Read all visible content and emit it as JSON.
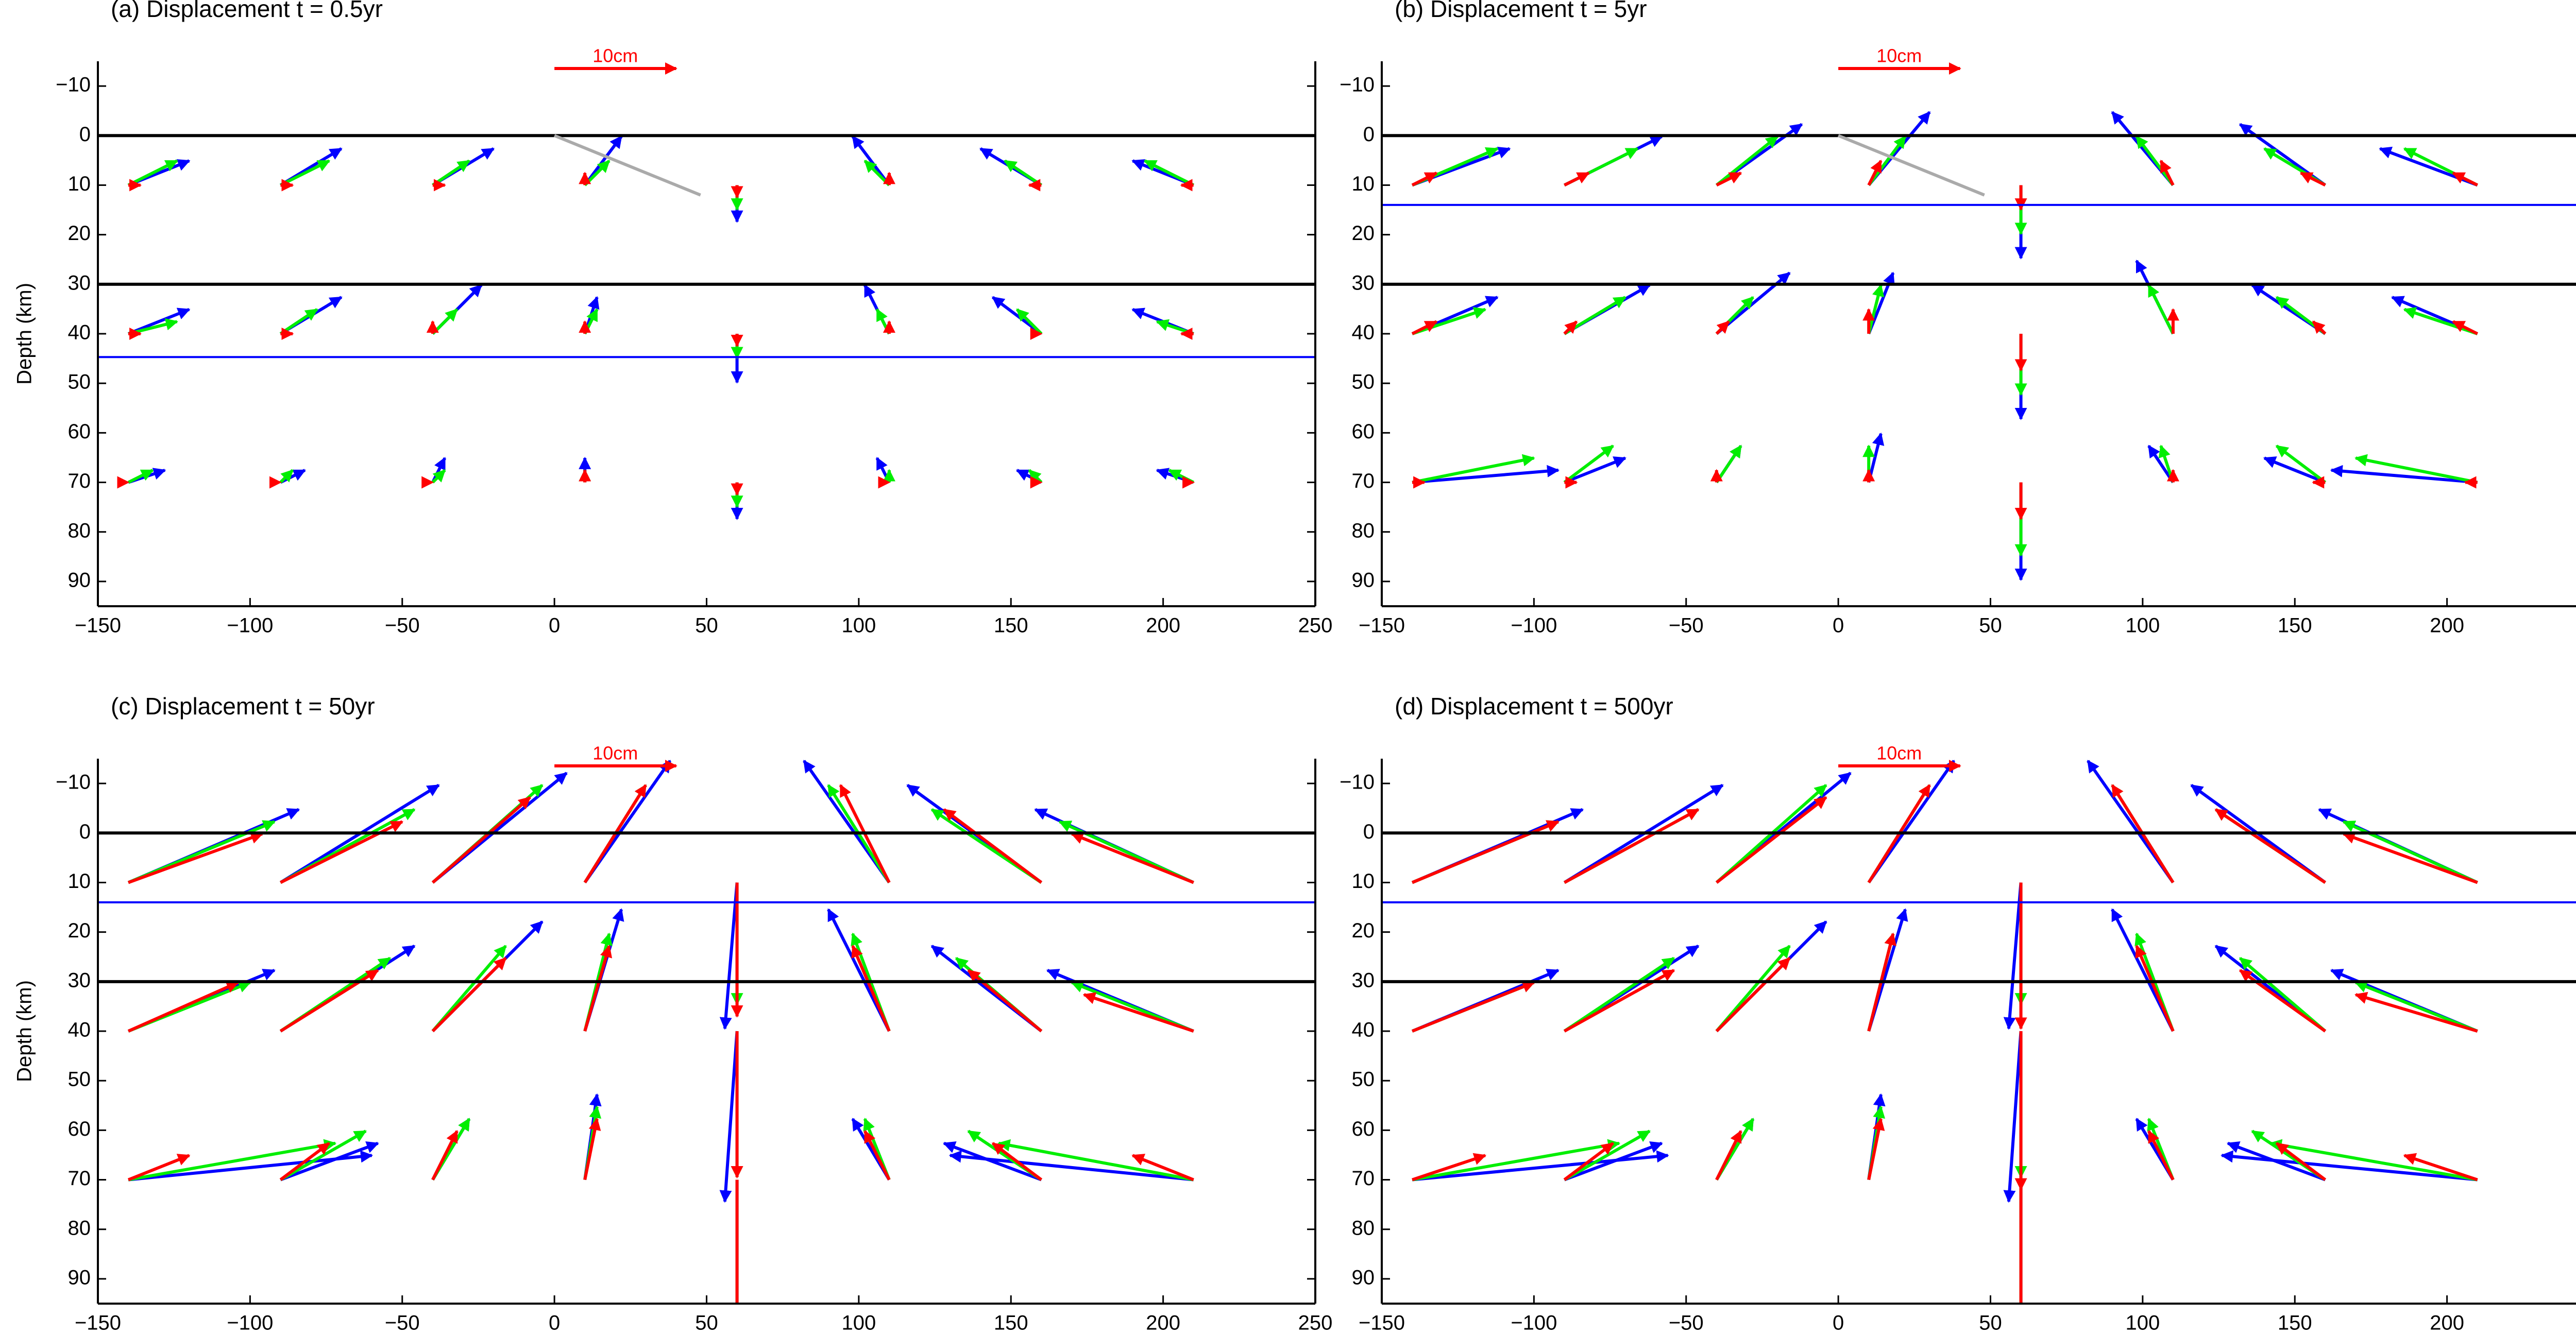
{
  "chart_data": [
    {
      "type": "quiver",
      "title": "(a) Displacement  t = 0.5yr",
      "ylabel": "Depth (km)",
      "xlim": [
        -150,
        250
      ],
      "ylim": [
        95,
        -15
      ],
      "xticks": [
        {
          "value": -150,
          "label": "−150"
        },
        {
          "value": -100,
          "label": "−100"
        },
        {
          "value": -50,
          "label": "−50"
        },
        0,
        50,
        100,
        150,
        200,
        250
      ],
      "yticks": [
        {
          "value": -10,
          "label": "−10"
        },
        0,
        10,
        20,
        30,
        40,
        50,
        60,
        70,
        80,
        90
      ],
      "layer_lines": [
        0,
        30
      ],
      "blue_line": 44.7,
      "fault": [
        [
          0,
          0
        ],
        [
          48,
          12
        ]
      ],
      "scale_label": "10cm",
      "scale_length": 10,
      "x": [
        -140,
        -90,
        -40,
        10,
        60,
        110,
        160,
        210,
        -140,
        -90,
        -40,
        10,
        60,
        110,
        160,
        210,
        -140,
        -90,
        -40,
        10,
        60,
        110,
        160,
        210
      ],
      "y": [
        10,
        10,
        10,
        10,
        10,
        10,
        10,
        10,
        40,
        40,
        40,
        40,
        40,
        40,
        40,
        40,
        70,
        70,
        70,
        70,
        70,
        70,
        70,
        70
      ],
      "series": [
        {
          "name": "blue",
          "color": "#0000ff",
          "u": [
            5,
            5,
            5,
            3,
            0,
            -3,
            -5,
            -5,
            5,
            5,
            4,
            1,
            0,
            -2,
            -4,
            -5,
            3,
            2,
            1,
            0,
            0,
            -1,
            -2,
            -3
          ],
          "v": [
            2,
            3,
            3,
            4,
            -3,
            4,
            3,
            2,
            2,
            3,
            4,
            3,
            -4,
            4,
            3,
            2,
            1,
            1,
            2,
            2,
            -3,
            2,
            1,
            1
          ]
        },
        {
          "name": "green",
          "color": "#00ee00",
          "u": [
            4,
            4,
            3,
            2,
            0,
            -2,
            -3,
            -4,
            4,
            3,
            2,
            1,
            0,
            -1,
            -2,
            -3,
            2,
            1,
            1,
            0,
            0,
            0,
            -1,
            -2
          ],
          "v": [
            2,
            2,
            2,
            2,
            -2,
            2,
            2,
            2,
            1,
            2,
            2,
            2,
            -2,
            2,
            2,
            1,
            1,
            1,
            1,
            1,
            -2,
            1,
            1,
            1
          ]
        },
        {
          "name": "red",
          "color": "#ff0000",
          "u": [
            1,
            1,
            1,
            0,
            0,
            0,
            -1,
            -1,
            1,
            1,
            0,
            0,
            0,
            0,
            0,
            -1,
            0,
            0,
            0,
            0,
            0,
            0,
            0,
            0
          ],
          "v": [
            0,
            0,
            0,
            1,
            -1,
            1,
            0,
            0,
            0,
            0,
            1,
            1,
            -1,
            1,
            0,
            0,
            0,
            0,
            0,
            1,
            -1,
            0,
            0,
            0
          ]
        }
      ]
    },
    {
      "type": "quiver",
      "title": "(b) Displacement  t = 5yr",
      "xlim": [
        -150,
        250
      ],
      "ylim": [
        95,
        -15
      ],
      "xticks": [
        {
          "value": -150,
          "label": "−150"
        },
        {
          "value": -100,
          "label": "−100"
        },
        {
          "value": -50,
          "label": "−50"
        },
        0,
        50,
        100,
        150,
        200,
        250
      ],
      "yticks": [
        {
          "value": -10,
          "label": "−10"
        },
        0,
        10,
        20,
        30,
        40,
        50,
        60,
        70,
        80,
        90
      ],
      "layer_lines": [
        0,
        30
      ],
      "blue_line": 14,
      "fault": [
        [
          0,
          0
        ],
        [
          48,
          12
        ]
      ],
      "scale_label": "10cm",
      "scale_length": 10,
      "x": [
        -140,
        -90,
        -40,
        10,
        60,
        110,
        160,
        210,
        -140,
        -90,
        -40,
        10,
        60,
        110,
        160,
        210,
        -140,
        -90,
        -40,
        10,
        60,
        110,
        160,
        210
      ],
      "y": [
        10,
        10,
        10,
        10,
        10,
        10,
        10,
        10,
        40,
        40,
        40,
        40,
        40,
        40,
        40,
        40,
        70,
        70,
        70,
        70,
        70,
        70,
        70,
        70
      ],
      "series": [
        {
          "name": "blue",
          "color": "#0000ff",
          "u": [
            8,
            8,
            7,
            5,
            0,
            -5,
            -7,
            -8,
            7,
            7,
            6,
            2,
            0,
            -3,
            -6,
            -7,
            12,
            5,
            2,
            1,
            0,
            -2,
            -5,
            -12
          ],
          "v": [
            3,
            4,
            5,
            6,
            -6,
            6,
            5,
            3,
            3,
            4,
            5,
            5,
            -7,
            6,
            4,
            3,
            1,
            2,
            3,
            4,
            -8,
            3,
            2,
            1
          ]
        },
        {
          "name": "green",
          "color": "#00ee00",
          "u": [
            7,
            6,
            5,
            3,
            0,
            -3,
            -5,
            -6,
            6,
            5,
            3,
            1,
            0,
            -2,
            -4,
            -6,
            10,
            4,
            2,
            0,
            0,
            -1,
            -4,
            -10
          ],
          "v": [
            3,
            3,
            4,
            4,
            -4,
            4,
            3,
            3,
            2,
            3,
            3,
            4,
            -5,
            4,
            3,
            2,
            2,
            3,
            3,
            3,
            -6,
            3,
            3,
            2
          ]
        },
        {
          "name": "red",
          "color": "#ff0000",
          "u": [
            2,
            2,
            2,
            1,
            0,
            -1,
            -2,
            -2,
            2,
            1,
            1,
            0,
            0,
            0,
            -1,
            -2,
            1,
            1,
            0,
            0,
            0,
            0,
            -1,
            -1
          ],
          "v": [
            1,
            1,
            1,
            2,
            -2,
            2,
            1,
            1,
            1,
            1,
            1,
            2,
            -3,
            2,
            1,
            1,
            0,
            0,
            1,
            1,
            -3,
            1,
            0,
            0
          ]
        }
      ]
    },
    {
      "type": "quiver",
      "title": "(c) Displacement  t = 50yr",
      "ylabel": "Depth (km)",
      "xlim": [
        -150,
        250
      ],
      "ylim": [
        95,
        -15
      ],
      "xticks": [
        {
          "value": -150,
          "label": "−150"
        },
        {
          "value": -100,
          "label": "−100"
        },
        {
          "value": -50,
          "label": "−50"
        },
        0,
        50,
        100,
        150,
        200,
        250
      ],
      "yticks": [
        {
          "value": -10,
          "label": "−10"
        },
        0,
        10,
        20,
        30,
        40,
        50,
        60,
        70,
        80,
        90
      ],
      "layer_lines": [
        0,
        30
      ],
      "blue_line": 14,
      "scale_label": "10cm",
      "scale_length": 10,
      "x": [
        -140,
        -90,
        -40,
        10,
        60,
        110,
        160,
        210,
        -140,
        -90,
        -40,
        10,
        60,
        110,
        160,
        210,
        -140,
        -90,
        -40,
        10,
        60,
        110,
        160,
        210
      ],
      "y": [
        10,
        10,
        10,
        10,
        10,
        10,
        10,
        10,
        40,
        40,
        40,
        40,
        40,
        40,
        40,
        40,
        70,
        70,
        70,
        70,
        70,
        70,
        70,
        70
      ],
      "series": [
        {
          "name": "blue",
          "color": "#0000ff",
          "u": [
            14,
            13,
            11,
            7,
            -1,
            -7,
            -11,
            -13,
            12,
            11,
            9,
            3,
            -1,
            -5,
            -9,
            -12,
            20,
            8,
            3,
            1,
            0,
            -3,
            -8,
            -20
          ],
          "v": [
            6,
            8,
            9,
            10,
            -12,
            10,
            8,
            6,
            5,
            7,
            9,
            10,
            -14,
            10,
            7,
            5,
            2,
            3,
            5,
            7,
            -15,
            5,
            3,
            2
          ]
        },
        {
          "name": "green",
          "color": "#00ee00",
          "u": [
            12,
            11,
            9,
            5,
            0,
            -5,
            -9,
            -11,
            10,
            9,
            6,
            2,
            0,
            -3,
            -7,
            -10,
            17,
            7,
            3,
            1,
            0,
            -2,
            -6,
            -16
          ],
          "v": [
            5,
            6,
            8,
            8,
            -10,
            8,
            6,
            5,
            4,
            6,
            7,
            8,
            -12,
            8,
            6,
            4,
            3,
            4,
            5,
            6,
            -13,
            5,
            4,
            3
          ]
        },
        {
          "name": "red",
          "color": "#ff0000",
          "u": [
            11,
            10,
            8,
            5,
            0,
            -4,
            -8,
            -10,
            9,
            8,
            6,
            2,
            0,
            -3,
            -6,
            -9,
            5,
            4,
            2,
            1,
            0,
            -2,
            -4,
            -5
          ],
          "v": [
            4,
            5,
            7,
            8,
            -11,
            8,
            6,
            4,
            4,
            5,
            6,
            7,
            -12,
            7,
            5,
            3,
            2,
            3,
            4,
            5,
            -12,
            4,
            3,
            2
          ]
        }
      ]
    },
    {
      "type": "quiver",
      "title": "(d) Displacement  t = 500yr",
      "xlim": [
        -150,
        250
      ],
      "ylim": [
        95,
        -15
      ],
      "xticks": [
        {
          "value": -150,
          "label": "−150"
        },
        {
          "value": -100,
          "label": "−100"
        },
        {
          "value": -50,
          "label": "−50"
        },
        0,
        50,
        100,
        150,
        200,
        250
      ],
      "yticks": [
        {
          "value": -10,
          "label": "−10"
        },
        0,
        10,
        20,
        30,
        40,
        50,
        60,
        70,
        80,
        90
      ],
      "layer_lines": [
        0,
        30
      ],
      "blue_line": 14,
      "scale_label": "10cm",
      "scale_length": 10,
      "x": [
        -140,
        -90,
        -40,
        10,
        60,
        110,
        160,
        210,
        -140,
        -90,
        -40,
        10,
        60,
        110,
        160,
        210,
        -140,
        -90,
        -40,
        10,
        60,
        110,
        160,
        210
      ],
      "y": [
        10,
        10,
        10,
        10,
        10,
        10,
        10,
        10,
        40,
        40,
        40,
        40,
        40,
        40,
        40,
        40,
        70,
        70,
        70,
        70,
        70,
        70,
        70,
        70
      ],
      "series": [
        {
          "name": "blue",
          "color": "#0000ff",
          "u": [
            14,
            13,
            11,
            7,
            -1,
            -7,
            -11,
            -13,
            12,
            11,
            9,
            3,
            -1,
            -5,
            -9,
            -12,
            21,
            8,
            3,
            1,
            0,
            -3,
            -8,
            -21
          ],
          "v": [
            6,
            8,
            9,
            10,
            -12,
            10,
            8,
            6,
            5,
            7,
            9,
            10,
            -14,
            10,
            7,
            5,
            2,
            3,
            5,
            7,
            -15,
            5,
            3,
            2
          ]
        },
        {
          "name": "green",
          "color": "#00ee00",
          "u": [
            12,
            11,
            9,
            5,
            0,
            -5,
            -9,
            -11,
            10,
            9,
            6,
            2,
            0,
            -3,
            -7,
            -10,
            17,
            7,
            3,
            1,
            0,
            -2,
            -6,
            -17
          ],
          "v": [
            5,
            6,
            8,
            8,
            -10,
            8,
            6,
            5,
            4,
            6,
            7,
            8,
            -12,
            8,
            6,
            4,
            3,
            4,
            5,
            6,
            -13,
            5,
            4,
            3
          ]
        },
        {
          "name": "red",
          "color": "#ff0000",
          "u": [
            12,
            11,
            9,
            5,
            0,
            -5,
            -9,
            -11,
            10,
            9,
            6,
            2,
            0,
            -3,
            -7,
            -10,
            6,
            4,
            2,
            1,
            0,
            -2,
            -4,
            -6
          ],
          "v": [
            5,
            6,
            7,
            8,
            -12,
            8,
            6,
            4,
            4,
            5,
            6,
            8,
            -13,
            7,
            5,
            3,
            2,
            3,
            4,
            5,
            -13,
            4,
            3,
            2
          ]
        }
      ]
    }
  ]
}
